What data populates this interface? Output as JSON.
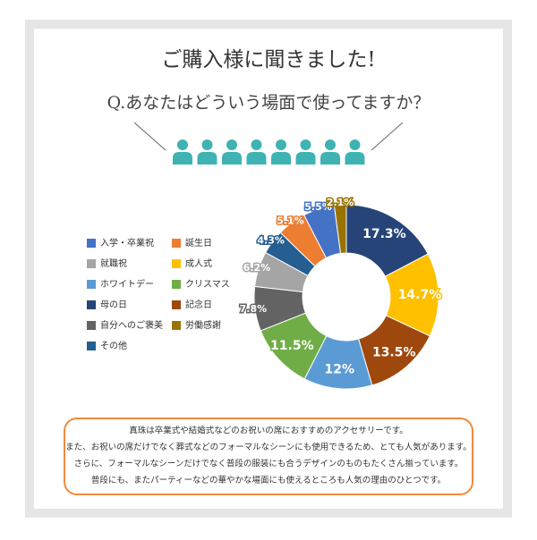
{
  "chart_data": {
    "type": "pie",
    "title": "ご購入様に聞きました!",
    "subtitle": "Q.あなたはどういう場面で使ってますか？",
    "categories": [
      "母の日",
      "成人式",
      "記念日",
      "ホワイトデー",
      "クリスマス",
      "自分へのご褒美",
      "就職祝",
      "その他",
      "誕生日",
      "入学・卒業祝",
      "労働感謝"
    ],
    "values": [
      17.3,
      14.7,
      13.5,
      12,
      11.5,
      7.8,
      6.2,
      4.3,
      5.1,
      5.5,
      2.1
    ],
    "value_labels": [
      "17.3%",
      "14.7%",
      "13.5%",
      "12%",
      "11.5%",
      "7.8%",
      "6.2%",
      "4.3%",
      "5.1%",
      "5.5%",
      "2.1%"
    ],
    "colors": [
      "#264478",
      "#ffc000",
      "#9e480e",
      "#5b9bd5",
      "#70ad47",
      "#636363",
      "#a5a5a5",
      "#255e91",
      "#ed7d31",
      "#4472c4",
      "#997300"
    ],
    "legend": [
      "入学・卒業祝",
      "誕生日",
      "就職祝",
      "成人式",
      "ホワイトデー",
      "クリスマス",
      "母の日",
      "記念日",
      "自分へのご褒美",
      "労働感謝",
      "その他"
    ],
    "note": [
      "真珠は卒業式や結婚式などのお祝いの席におすすめのアクセサリーです。",
      "また、お祝いの席だけでなく葬式などのフォーマルなシーンにも使用できるため、とても人気があります。",
      "さらに、フォーマルなシーンだけでなく普段の服装にも合うデザインのものもたくさん揃っています。",
      "普段にも、またパーティーなどの華やかな場面にも使えるところも人気の理由のひとつです。"
    ]
  }
}
